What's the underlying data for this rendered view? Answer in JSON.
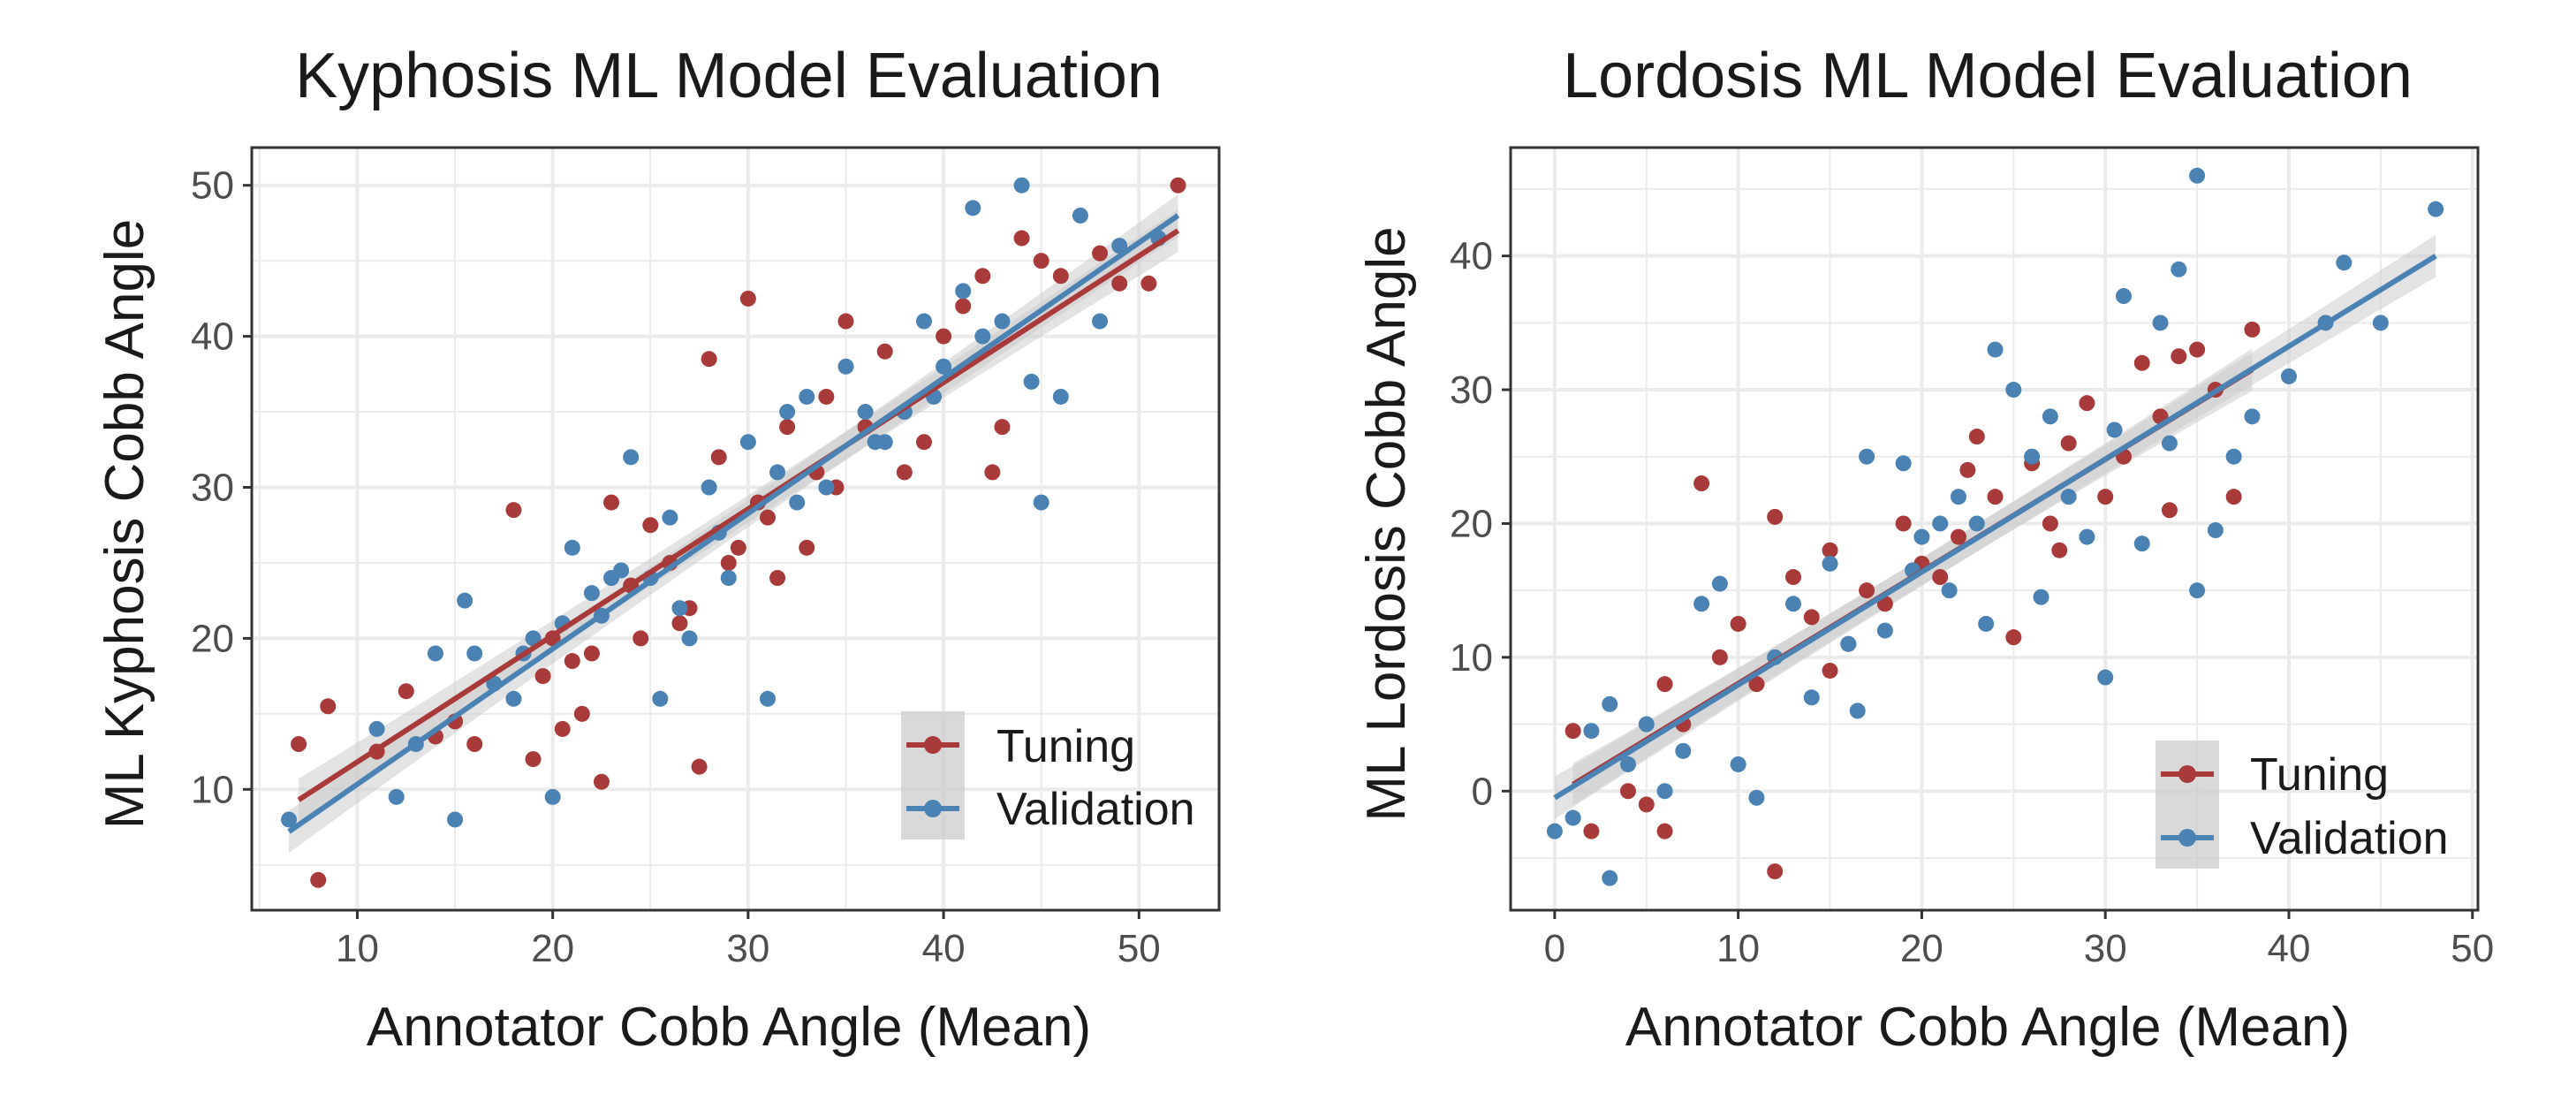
{
  "colors": {
    "tuning": "#a83a3a",
    "validation": "#4a82b4",
    "band": "#cccccc",
    "grid": "#ebebeb",
    "panel_border": "#333333"
  },
  "chart_data": [
    {
      "type": "scatter",
      "title": "Kyphosis ML Model Evaluation",
      "xlabel": "Annotator Cobb Angle (Mean)",
      "ylabel": "ML Kyphosis Cobb Angle",
      "xlim": [
        4.6,
        54.1
      ],
      "ylim": [
        2.0,
        52.5
      ],
      "xticks": [
        10,
        20,
        30,
        40,
        50
      ],
      "yticks": [
        10,
        20,
        30,
        40,
        50
      ],
      "grid": true,
      "legend_position": "bottom-right",
      "series": [
        {
          "name": "Tuning",
          "color": "#a83a3a",
          "fit": {
            "x": [
              7,
              52
            ],
            "y": [
              9.3,
              47.0
            ]
          },
          "points": [
            [
              7,
              13
            ],
            [
              8,
              4
            ],
            [
              8.5,
              15.5
            ],
            [
              11,
              12.5
            ],
            [
              12.5,
              16.5
            ],
            [
              14,
              13.5
            ],
            [
              15,
              14.5
            ],
            [
              16,
              13
            ],
            [
              18,
              28.5
            ],
            [
              19,
              12
            ],
            [
              19.5,
              17.5
            ],
            [
              20,
              20
            ],
            [
              20.5,
              14
            ],
            [
              21,
              18.5
            ],
            [
              21.5,
              15
            ],
            [
              22,
              19
            ],
            [
              22.5,
              10.5
            ],
            [
              23,
              29
            ],
            [
              24,
              23.5
            ],
            [
              25,
              27.5
            ],
            [
              26,
              25
            ],
            [
              27,
              22
            ],
            [
              27.5,
              11.5
            ],
            [
              28,
              38.5
            ],
            [
              28.5,
              32
            ],
            [
              29,
              25
            ],
            [
              30,
              42.5
            ],
            [
              30.5,
              29
            ],
            [
              31,
              28
            ],
            [
              32,
              34
            ],
            [
              33,
              26
            ],
            [
              33.5,
              31
            ],
            [
              34,
              36
            ],
            [
              35,
              41
            ],
            [
              36,
              34
            ],
            [
              37,
              39
            ],
            [
              38,
              31
            ],
            [
              39,
              33
            ],
            [
              40,
              40
            ],
            [
              41,
              42
            ],
            [
              42,
              44
            ],
            [
              42.5,
              31
            ],
            [
              43,
              34
            ],
            [
              44,
              46.5
            ],
            [
              45,
              45
            ],
            [
              46,
              44
            ],
            [
              48,
              45.5
            ],
            [
              49,
              43.5
            ],
            [
              50.5,
              43.5
            ],
            [
              52,
              50
            ],
            [
              24.5,
              20
            ],
            [
              26.5,
              21
            ],
            [
              29.5,
              26
            ],
            [
              31.5,
              24
            ],
            [
              34.5,
              30
            ]
          ]
        },
        {
          "name": "Validation",
          "color": "#4a82b4",
          "fit": {
            "x": [
              6.5,
              52
            ],
            "y": [
              7.2,
              48.0
            ]
          },
          "points": [
            [
              6.5,
              8
            ],
            [
              11,
              14
            ],
            [
              12,
              9.5
            ],
            [
              13,
              13
            ],
            [
              14,
              19
            ],
            [
              15,
              8
            ],
            [
              15.5,
              22.5
            ],
            [
              16,
              19
            ],
            [
              17,
              17
            ],
            [
              18,
              16
            ],
            [
              19,
              20
            ],
            [
              20,
              9.5
            ],
            [
              20.5,
              21
            ],
            [
              21,
              26
            ],
            [
              22,
              23
            ],
            [
              23,
              24
            ],
            [
              24,
              32
            ],
            [
              25,
              24
            ],
            [
              25.5,
              16
            ],
            [
              26,
              28
            ],
            [
              27,
              20
            ],
            [
              28,
              30
            ],
            [
              29,
              24
            ],
            [
              30,
              33
            ],
            [
              31,
              16
            ],
            [
              31.5,
              31
            ],
            [
              32,
              35
            ],
            [
              33,
              36
            ],
            [
              34,
              30
            ],
            [
              35,
              38
            ],
            [
              36,
              35
            ],
            [
              37,
              33
            ],
            [
              38,
              35
            ],
            [
              39,
              41
            ],
            [
              40,
              38
            ],
            [
              41,
              43
            ],
            [
              41.5,
              48.5
            ],
            [
              42,
              40
            ],
            [
              43,
              41
            ],
            [
              44,
              50
            ],
            [
              44.5,
              37
            ],
            [
              45,
              29
            ],
            [
              46,
              36
            ],
            [
              47,
              48
            ],
            [
              48,
              41
            ],
            [
              49,
              46
            ],
            [
              51,
              46.5
            ],
            [
              23.5,
              24.5
            ],
            [
              26.5,
              22
            ],
            [
              28.5,
              27
            ],
            [
              32.5,
              29
            ],
            [
              36.5,
              33
            ],
            [
              39.5,
              36
            ],
            [
              18.5,
              19
            ],
            [
              22.5,
              21.5
            ]
          ]
        }
      ]
    },
    {
      "type": "scatter",
      "title": "Lordosis ML Model Evaluation",
      "xlabel": "Annotator Cobb Angle (Mean)",
      "ylabel": "ML Lordosis Cobb Angle",
      "xlim": [
        -2.4,
        50.3
      ],
      "ylim": [
        -8.9,
        48.1
      ],
      "xticks": [
        0,
        10,
        20,
        30,
        40,
        50
      ],
      "yticks": [
        0,
        10,
        20,
        30,
        40
      ],
      "grid": true,
      "legend_position": "bottom-right",
      "series": [
        {
          "name": "Tuning",
          "color": "#a83a3a",
          "fit": {
            "x": [
              1,
              38
            ],
            "y": [
              0.5,
              31.5
            ]
          },
          "points": [
            [
              1,
              4.5
            ],
            [
              2,
              -3
            ],
            [
              4,
              0
            ],
            [
              5,
              -1
            ],
            [
              6,
              8
            ],
            [
              7,
              5
            ],
            [
              8,
              23
            ],
            [
              9,
              10
            ],
            [
              10,
              12.5
            ],
            [
              11,
              8
            ],
            [
              12,
              -6
            ],
            [
              12,
              20.5
            ],
            [
              13,
              16
            ],
            [
              14,
              13
            ],
            [
              15,
              18
            ],
            [
              16,
              11
            ],
            [
              17,
              15
            ],
            [
              18,
              14
            ],
            [
              19,
              20
            ],
            [
              20,
              17
            ],
            [
              21,
              16
            ],
            [
              22,
              19
            ],
            [
              23,
              26.5
            ],
            [
              24,
              22
            ],
            [
              25,
              11.5
            ],
            [
              26,
              24.5
            ],
            [
              27,
              20
            ],
            [
              28,
              26
            ],
            [
              29,
              29
            ],
            [
              30,
              22
            ],
            [
              31,
              25
            ],
            [
              32,
              32
            ],
            [
              33,
              28
            ],
            [
              34,
              32.5
            ],
            [
              35,
              33
            ],
            [
              36,
              30
            ],
            [
              37,
              22
            ],
            [
              38,
              34.5
            ],
            [
              6,
              -3
            ],
            [
              15,
              9
            ],
            [
              22.5,
              24
            ],
            [
              27.5,
              18
            ],
            [
              33.5,
              21
            ]
          ]
        },
        {
          "name": "Validation",
          "color": "#4a82b4",
          "fit": {
            "x": [
              0,
              48
            ],
            "y": [
              -0.5,
              40.0
            ]
          },
          "points": [
            [
              0,
              -3
            ],
            [
              1,
              -2
            ],
            [
              2,
              4.5
            ],
            [
              3,
              -6.5
            ],
            [
              3,
              6.5
            ],
            [
              4,
              2
            ],
            [
              5,
              5
            ],
            [
              6,
              0
            ],
            [
              7,
              3
            ],
            [
              8,
              14
            ],
            [
              9,
              15.5
            ],
            [
              10,
              2
            ],
            [
              11,
              -0.5
            ],
            [
              12,
              10
            ],
            [
              13,
              14
            ],
            [
              14,
              7
            ],
            [
              15,
              17
            ],
            [
              16,
              11
            ],
            [
              17,
              25
            ],
            [
              18,
              12
            ],
            [
              19,
              24.5
            ],
            [
              20,
              19
            ],
            [
              21,
              20
            ],
            [
              22,
              22
            ],
            [
              23,
              20
            ],
            [
              24,
              33
            ],
            [
              25,
              30
            ],
            [
              26,
              25
            ],
            [
              27,
              28
            ],
            [
              28,
              22
            ],
            [
              29,
              19
            ],
            [
              30,
              8.5
            ],
            [
              31,
              37
            ],
            [
              32,
              18.5
            ],
            [
              33,
              35
            ],
            [
              34,
              39
            ],
            [
              35,
              46
            ],
            [
              35,
              15
            ],
            [
              36,
              19.5
            ],
            [
              37,
              25
            ],
            [
              38,
              28
            ],
            [
              40,
              31
            ],
            [
              42,
              35
            ],
            [
              43,
              39.5
            ],
            [
              45,
              35
            ],
            [
              48,
              43.5
            ],
            [
              16.5,
              6
            ],
            [
              21.5,
              15
            ],
            [
              26.5,
              14.5
            ],
            [
              30.5,
              27
            ],
            [
              33.5,
              26
            ],
            [
              19.5,
              16.5
            ],
            [
              23.5,
              12.5
            ]
          ]
        }
      ]
    }
  ]
}
